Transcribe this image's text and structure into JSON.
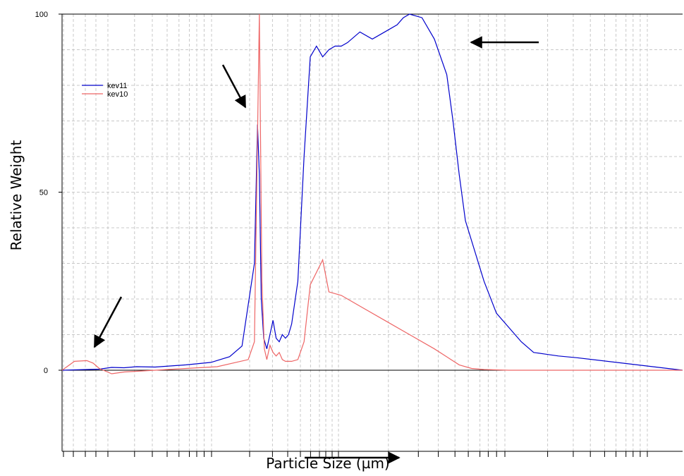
{
  "chart_data": {
    "type": "line",
    "title": "",
    "xlabel": "Particle Size (µm)",
    "ylabel": "Relative Weight",
    "x_scale": "log",
    "x_tick_labels_shown": false,
    "ylim": [
      -12,
      100
    ],
    "yticks": [
      0,
      50,
      100
    ],
    "grid": true,
    "legend_position": "top-left",
    "series": [
      {
        "name": "kev11",
        "color": "#0000cc",
        "x": [
          0.0,
          0.06,
          0.08,
          0.1,
          0.12,
          0.15,
          0.2,
          0.24,
          0.27,
          0.29,
          0.31,
          0.315,
          0.318,
          0.321,
          0.325,
          0.33,
          0.34,
          0.345,
          0.35,
          0.355,
          0.36,
          0.365,
          0.37,
          0.38,
          0.39,
          0.4,
          0.41,
          0.42,
          0.43,
          0.44,
          0.45,
          0.46,
          0.48,
          0.5,
          0.52,
          0.54,
          0.55,
          0.56,
          0.58,
          0.6,
          0.62,
          0.63,
          0.64,
          0.65,
          0.68,
          0.7,
          0.72,
          0.74,
          0.76,
          0.78,
          0.8,
          0.83,
          1.0
        ],
        "y": [
          0,
          0.3,
          0.8,
          0.7,
          1.0,
          0.9,
          1.5,
          2.2,
          3.8,
          6.8,
          30,
          69,
          55,
          20,
          9,
          6,
          14,
          9,
          8,
          10,
          9,
          10,
          13,
          25,
          60,
          88,
          91,
          88,
          90,
          91,
          91,
          92,
          95,
          93,
          95,
          97,
          99,
          100,
          99,
          93,
          83,
          70,
          55,
          42,
          25,
          16,
          12,
          8,
          5,
          4.5,
          4,
          3.5,
          0
        ]
      },
      {
        "name": "kev10",
        "color": "#ee6666",
        "x": [
          0.0,
          0.02,
          0.04,
          0.05,
          0.06,
          0.08,
          0.1,
          0.12,
          0.15,
          0.2,
          0.25,
          0.3,
          0.31,
          0.318,
          0.322,
          0.326,
          0.33,
          0.335,
          0.34,
          0.345,
          0.35,
          0.355,
          0.36,
          0.37,
          0.38,
          0.39,
          0.4,
          0.42,
          0.43,
          0.45,
          0.48,
          0.52,
          0.56,
          0.6,
          0.64,
          0.66,
          0.68,
          0.72,
          0.8,
          1.0
        ],
        "y": [
          0,
          2.5,
          2.7,
          2,
          0.5,
          -1,
          -0.5,
          -0.3,
          0,
          0.5,
          1,
          3,
          8,
          100,
          25,
          6,
          3,
          7,
          5,
          4,
          5,
          3,
          2.5,
          2.5,
          3,
          8,
          24,
          31,
          22,
          21,
          18,
          14,
          10,
          6,
          1.5,
          0.5,
          0.2,
          0,
          0,
          0
        ]
      }
    ]
  }
}
